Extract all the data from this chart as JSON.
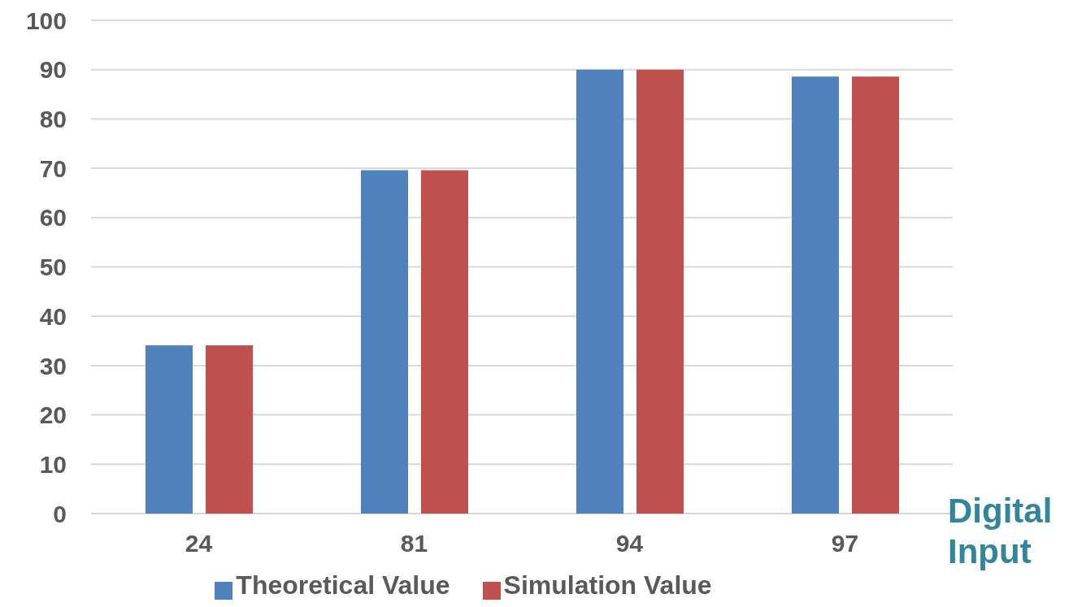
{
  "chart_data": {
    "type": "bar",
    "xlabel": "Digital Input",
    "categories": [
      "24",
      "81",
      "94",
      "97"
    ],
    "series": [
      {
        "name": "Theoretical Value",
        "color": "#4f81bd",
        "values": [
          34.1,
          69.6,
          90,
          88.6
        ]
      },
      {
        "name": "Simulation Value",
        "color": "#c0504d",
        "values": [
          34.1,
          69.6,
          90,
          88.6
        ]
      }
    ],
    "ylim": [
      0,
      100
    ],
    "yticks": [
      0,
      10,
      20,
      30,
      40,
      50,
      60,
      70,
      80,
      90,
      100
    ],
    "grid": "y",
    "legend": "bottom"
  }
}
